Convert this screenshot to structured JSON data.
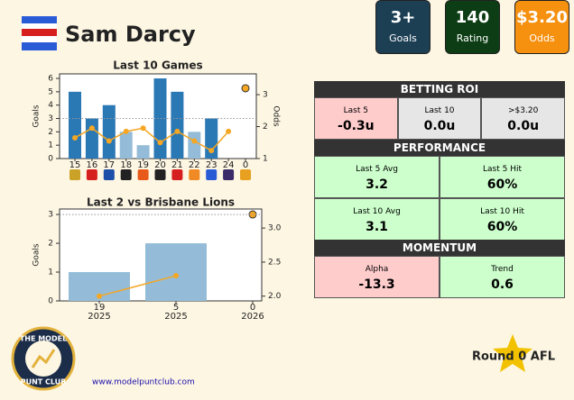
{
  "header": {
    "player": "Sam Darcy"
  },
  "stats": [
    {
      "value": "3+",
      "label": "Goals",
      "color": "#1d3f54"
    },
    {
      "value": "140",
      "label": "Rating",
      "color": "#0d3d14"
    },
    {
      "value": "$3.20",
      "label": "Odds",
      "color": "#f6900f"
    }
  ],
  "chart_data": [
    {
      "type": "bar_line",
      "title": "Last 10 Games",
      "categories": [
        "15",
        "16",
        "17",
        "18",
        "19",
        "20",
        "21",
        "22",
        "23",
        "24",
        "0"
      ],
      "y_label": "Goals",
      "y2_label": "Odds",
      "ylim": [
        0,
        6.34
      ],
      "yticks": [
        0,
        1,
        2,
        3,
        4,
        5,
        6
      ],
      "y2lim": [
        1,
        3.65
      ],
      "y2ticks": [
        1,
        2,
        3
      ],
      "reference_line": 3,
      "series": [
        {
          "type": "bar",
          "values": [
            5,
            3,
            4,
            2,
            1,
            6,
            5,
            2,
            3,
            null,
            null
          ],
          "colors": [
            "#2a78b4",
            "#2a78b4",
            "#2a78b4",
            "#94bcd8",
            "#94bcd8",
            "#2a78b4",
            "#2a78b4",
            "#94bcd8",
            "#2a78b4",
            "#2a78b4",
            "#2a78b4"
          ]
        },
        {
          "type": "line",
          "axis": "y2",
          "color": "#f5a623",
          "values": [
            1.65,
            1.95,
            1.55,
            1.85,
            1.95,
            1.5,
            1.85,
            1.55,
            1.25,
            1.85,
            null
          ]
        },
        {
          "type": "point",
          "axis": "y2",
          "color": "#f5a623",
          "values": [
            null,
            null,
            null,
            null,
            null,
            null,
            null,
            null,
            null,
            null,
            3.2
          ]
        }
      ]
    },
    {
      "type": "bar_line",
      "title": "Last 2 vs Brisbane Lions",
      "categories": [
        "19",
        "5",
        "0"
      ],
      "category_years": [
        "2025",
        "2025",
        "2026"
      ],
      "y_label": "Goals",
      "ylim": [
        0,
        3.19
      ],
      "yticks": [
        0,
        1,
        2,
        3
      ],
      "y2lim": [
        1.93,
        3.28
      ],
      "y2ticks": [
        {
          "value": 2,
          "label": "2.0"
        },
        {
          "value": 2.5,
          "label": "2.5"
        },
        {
          "value": 3,
          "label": "3.0"
        }
      ],
      "reference_line": 3,
      "series": [
        {
          "type": "bar",
          "values": [
            1,
            2,
            null
          ],
          "colors": [
            "#94bcd8",
            "#94bcd8",
            "#94bcd8"
          ]
        },
        {
          "type": "line",
          "axis": "y2",
          "color": "#f5a623",
          "values": [
            2.0,
            2.3,
            null
          ]
        },
        {
          "type": "point",
          "axis": "y2",
          "color": "#f5a623",
          "values": [
            null,
            null,
            3.2
          ]
        }
      ]
    }
  ],
  "tables": [
    {
      "title": "BETTING ROI",
      "rows": [
        [
          {
            "label": "Last 5",
            "value": "-0.3u",
            "color": "#ffcccc"
          },
          {
            "label": "Last 10",
            "value": "0.0u",
            "color": "#e6e6e6"
          },
          {
            "label": ">$3.20",
            "value": "0.0u",
            "color": "#e6e6e6"
          }
        ]
      ]
    },
    {
      "title": "PERFORMANCE",
      "rows": [
        [
          {
            "label": "Last 5 Avg",
            "value": "3.2",
            "color": "#ccffcc"
          },
          {
            "label": "Last 5 Hit",
            "value": "60%",
            "color": "#ccffcc"
          }
        ],
        [
          {
            "label": "Last 10 Avg",
            "value": "3.1",
            "color": "#ccffcc"
          },
          {
            "label": "Last 10 Hit",
            "value": "60%",
            "color": "#ccffcc"
          }
        ]
      ]
    },
    {
      "title": "MOMENTUM",
      "rows": [
        [
          {
            "label": "Alpha",
            "value": "-13.3",
            "color": "#ffcccc"
          },
          {
            "label": "Trend",
            "value": "0.6",
            "color": "#ccffcc"
          }
        ]
      ]
    }
  ],
  "footer": {
    "logo_top": "THE MODEL",
    "logo_bottom": "PUNT CLUB",
    "url": "www.modelpuntclub.com",
    "round": "Round 0 AFL"
  }
}
